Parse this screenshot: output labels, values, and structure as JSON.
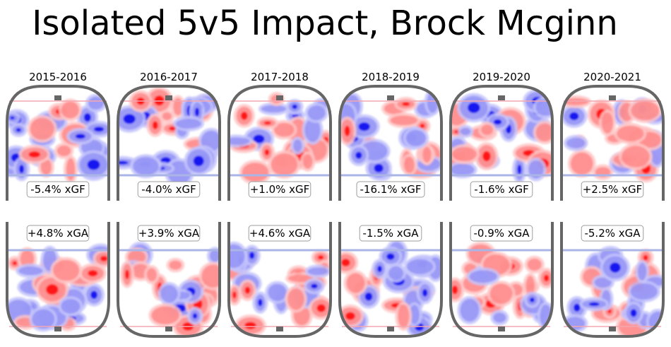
{
  "title": "Isolated 5v5 Impact, Brock Mcginn",
  "colors": {
    "offense_hot": "#ff0000",
    "defense_cold": "#0000ee",
    "board": "#666666",
    "blue_line": "#aab4e6",
    "red_line": "#f4a7b0"
  },
  "chart_data": {
    "type": "heatmap",
    "title": "Isolated 5v5 Impact, Brock Mcginn",
    "panels": [
      {
        "season": "2015-2016",
        "xGF": "-5.4% xGF",
        "xGA": "+4.8% xGA",
        "xGF_value": -5.4,
        "xGA_value": 4.8
      },
      {
        "season": "2016-2017",
        "xGF": "-4.0% xGF",
        "xGA": "+3.9% xGA",
        "xGF_value": -4.0,
        "xGA_value": 3.9
      },
      {
        "season": "2017-2018",
        "xGF": "+1.0% xGF",
        "xGA": "+4.6% xGA",
        "xGF_value": 1.0,
        "xGA_value": 4.6
      },
      {
        "season": "2018-2019",
        "xGF": "-16.1% xGF",
        "xGA": "-1.5% xGA",
        "xGF_value": -16.1,
        "xGA_value": -1.5
      },
      {
        "season": "2019-2020",
        "xGF": "-1.6% xGF",
        "xGA": "-0.9% xGA",
        "xGF_value": -1.6,
        "xGA_value": -0.9
      },
      {
        "season": "2020-2021",
        "xGF": "+2.5% xGF",
        "xGA": "-5.2% xGA",
        "xGF_value": 2.5,
        "xGA_value": -5.2
      }
    ]
  }
}
